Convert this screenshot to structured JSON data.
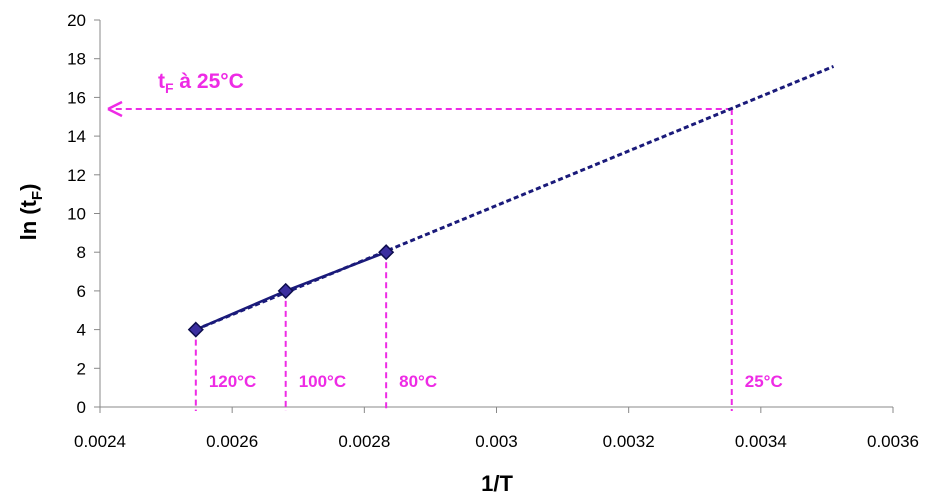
{
  "chart_data": {
    "type": "scatter",
    "xlabel": "1/T",
    "ylabel_main": "ln (t",
    "ylabel_sub": "F",
    "ylabel_end": ")",
    "xlim": [
      0.0024,
      0.0036
    ],
    "ylim": [
      0,
      20
    ],
    "x_ticks": [
      "0.0024",
      "0.0026",
      "0.0028",
      "0.003",
      "0.0032",
      "0.0034",
      "0.0036"
    ],
    "x_tick_values": [
      0.0024,
      0.0026,
      0.0028,
      0.003,
      0.0032,
      0.0034,
      0.0036
    ],
    "y_ticks": [
      "0",
      "2",
      "4",
      "6",
      "8",
      "10",
      "12",
      "14",
      "16",
      "18",
      "20"
    ],
    "y_tick_values": [
      0,
      2,
      4,
      6,
      8,
      10,
      12,
      14,
      16,
      18,
      20
    ],
    "grid": false,
    "series": [
      {
        "kind": "measured",
        "x": [
          0.002545,
          0.002681,
          0.002833
        ],
        "y": [
          4,
          6,
          8
        ]
      },
      {
        "kind": "extrapolation",
        "x": [
          0.002545,
          0.00351
        ],
        "y": [
          4,
          17.6
        ]
      }
    ],
    "reference_lines": [
      {
        "x": 0.002545,
        "y": 4,
        "label": "120°C"
      },
      {
        "x": 0.002681,
        "y": 6,
        "label": "100°C"
      },
      {
        "x": 0.002833,
        "y": 8,
        "label": "80°C"
      },
      {
        "x": 0.003356,
        "y": 15.4,
        "label": "25°C"
      }
    ],
    "callout": {
      "main": "t",
      "sub": "F",
      "rest": " à 25°C",
      "y": 15.4
    },
    "colors": {
      "series": "#1a1a7a",
      "marker": "#3b2fa0",
      "guides": "#ee2be5",
      "axis": "#888888"
    }
  }
}
